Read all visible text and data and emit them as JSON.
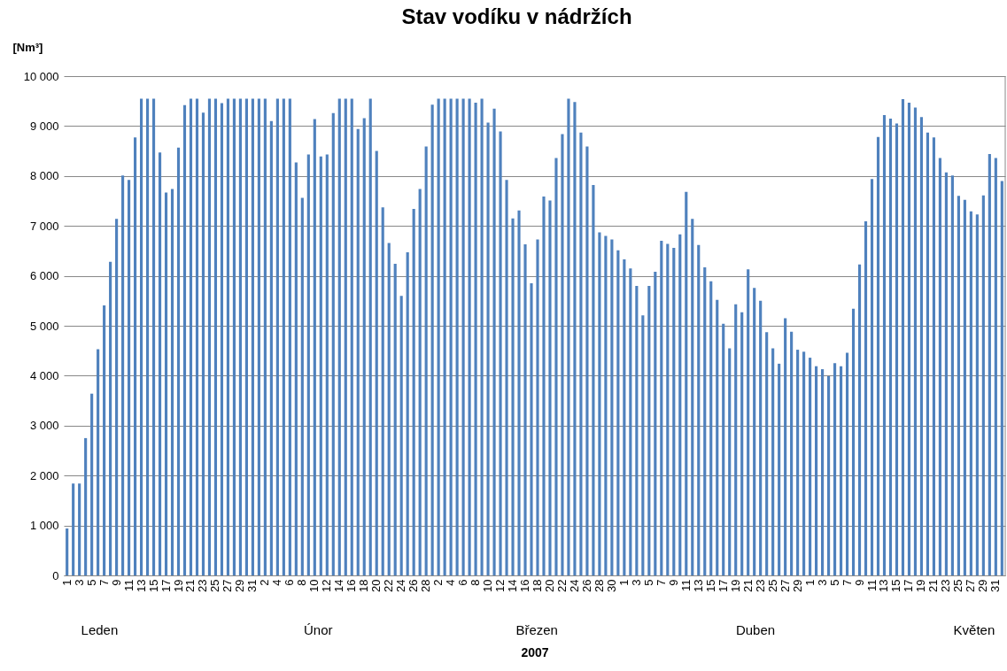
{
  "chart_data": {
    "type": "bar",
    "title": "Stav vodíku v nádržích",
    "xlabel": "2007",
    "ylabel": "[Nm³]",
    "categories": [
      "1",
      null,
      "3",
      null,
      "5",
      null,
      "7",
      null,
      "9",
      null,
      "11",
      null,
      "13",
      null,
      "15",
      null,
      "17",
      null,
      "19",
      null,
      "21",
      null,
      "23",
      null,
      "25",
      null,
      "27",
      null,
      "29",
      null,
      "31",
      null,
      "2",
      null,
      "4",
      null,
      "6",
      null,
      "8",
      null,
      "10",
      null,
      "12",
      null,
      "14",
      null,
      "16",
      null,
      "18",
      null,
      "20",
      null,
      "22",
      null,
      "24",
      null,
      "26",
      null,
      "28",
      null,
      "2",
      null,
      "4",
      null,
      "6",
      null,
      "8",
      null,
      "10",
      null,
      "12",
      null,
      "14",
      null,
      "16",
      null,
      "18",
      null,
      "20",
      null,
      "22",
      null,
      "24",
      null,
      "26",
      null,
      "28",
      null,
      "30",
      null,
      "1",
      null,
      "3",
      null,
      "5",
      null,
      "7",
      null,
      "9",
      null,
      "11",
      null,
      "13",
      null,
      "15",
      null,
      "17",
      null,
      "19",
      null,
      "21",
      null,
      "23",
      null,
      "25",
      null,
      "27",
      null,
      "29",
      null,
      "1",
      null,
      "3",
      null,
      "5",
      null,
      "7",
      null,
      "9",
      null,
      "11",
      null,
      "13",
      null,
      "15",
      null,
      "17",
      null,
      "19",
      null,
      "21",
      null,
      "23",
      null,
      "25",
      null,
      "27",
      null,
      "29",
      null,
      "31",
      null
    ],
    "values": [
      940,
      1840,
      1840,
      2750,
      3640,
      4530,
      5410,
      6280,
      7140,
      8010,
      7920,
      8770,
      9550,
      9550,
      9550,
      8470,
      7670,
      7740,
      8570,
      9420,
      9550,
      9550,
      9270,
      9550,
      9550,
      9460,
      9550,
      9550,
      9550,
      9550,
      9550,
      9550,
      9550,
      9100,
      9550,
      9550,
      9550,
      8270,
      7560,
      8430,
      9140,
      8390,
      8430,
      9260,
      9550,
      9550,
      9550,
      8940,
      9160,
      9550,
      8500,
      7370,
      6660,
      6240,
      5600,
      6470,
      7340,
      7740,
      8590,
      9430,
      9550,
      9550,
      9550,
      9550,
      9550,
      9550,
      9470,
      9550,
      9070,
      9350,
      8890,
      7920,
      7150,
      7310,
      6630,
      5850,
      6730,
      7590,
      7510,
      8360,
      8840,
      9550,
      9480,
      8870,
      8590,
      7820,
      6870,
      6800,
      6730,
      6510,
      6330,
      6150,
      5800,
      5210,
      5800,
      6080,
      6700,
      6640,
      6560,
      6830,
      7680,
      7140,
      6620,
      6170,
      5890,
      5520,
      5040,
      4550,
      5430,
      5270,
      6130,
      5760,
      5500,
      4870,
      4550,
      4240,
      5150,
      4880,
      4520,
      4480,
      4360,
      4190,
      4130,
      3990,
      4250,
      4190,
      4460,
      5340,
      6230,
      7090,
      7940,
      8780,
      9220,
      9150,
      9050,
      9540,
      9470,
      9370,
      9180,
      8870,
      8770,
      8360,
      8070,
      8010,
      7600,
      7520,
      7290,
      7230,
      7610,
      8440,
      8360,
      7900
    ],
    "color": "#4f81bd",
    "ylim": [
      0,
      10000
    ],
    "yticks": [
      0,
      {
        "value": 1000,
        "label": "1 000"
      },
      {
        "value": 2000,
        "label": "2 000"
      },
      {
        "value": 3000,
        "label": "3 000"
      },
      {
        "value": 4000,
        "label": "4 000"
      },
      {
        "value": 5000,
        "label": "5 000"
      },
      {
        "value": 6000,
        "label": "6 000"
      },
      {
        "value": 7000,
        "label": "7 000"
      },
      {
        "value": 8000,
        "label": "8 000"
      },
      {
        "value": 9000,
        "label": "9 000"
      },
      {
        "value": 10000,
        "label": "10 000"
      }
    ],
    "grid": "y",
    "annotations": [
      "Leden",
      "Únor",
      "Březen",
      "Duben",
      "Květen"
    ]
  }
}
